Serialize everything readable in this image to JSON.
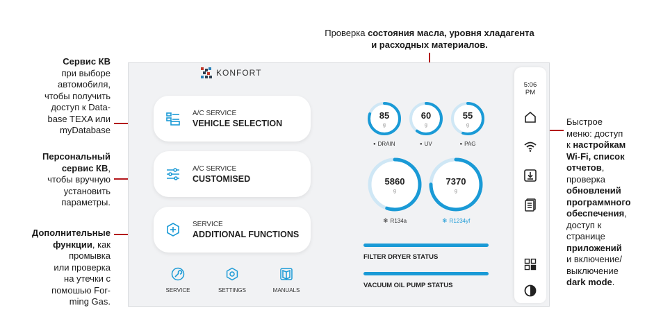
{
  "annotations": {
    "top_plain": "Проверка ",
    "top_bold_1": "состояния масла, уровня хладагента",
    "top_bold_2": "и расходных материалов.",
    "service_kv": {
      "title": "Сервис КВ",
      "lines": [
        "при выборе",
        "автомобиля,",
        "чтобы получить",
        "доступ к Data-",
        "base TEXA или",
        "myDatabase"
      ]
    },
    "personal": {
      "title_1": "Персональный",
      "title_2": "сервис КВ",
      "title_2_suffix": ",",
      "lines": [
        "чтобы вручную",
        "установить",
        "параметры."
      ]
    },
    "additional": {
      "title_1": "Дополнительные",
      "title_2": "функции",
      "title_2_suffix": ", как",
      "lines": [
        "промывка",
        "или проверка",
        "на утечки с",
        "помошью For-",
        "ming Gas."
      ]
    },
    "quick_menu": {
      "l1": "Быстрое",
      "l2": "меню: доступ",
      "l3_plain": "к ",
      "l3_bold": "настройкам",
      "l4_bold": "Wi-Fi, список",
      "l5_bold": "отчетов",
      "l5_plain": ",",
      "l6": "проверка",
      "l7_bold": "обновлений",
      "l8_bold": "программного",
      "l9_bold": "обеспечения",
      "l9_plain": ",",
      "l10": "доступ к",
      "l11": "странице",
      "l12_bold": "приложений",
      "l13": "и включение/",
      "l14": "выключение",
      "l15_bold": "dark mode",
      "l15_plain": "."
    }
  },
  "screen": {
    "logo_text": "KONFORT",
    "cards": [
      {
        "small": "A/C SERVICE",
        "big": "VEHICLE SELECTION",
        "icon": "vehicle-list-icon"
      },
      {
        "small": "A/C SERVICE",
        "big": "CUSTOMISED",
        "icon": "sliders-icon"
      },
      {
        "small": "SERVICE",
        "big": "ADDITIONAL FUNCTIONS",
        "icon": "plus-hexagon-icon"
      }
    ],
    "bottom_nav": [
      {
        "label": "SERVICE",
        "icon": "wrench-icon"
      },
      {
        "label": "SETTINGS",
        "icon": "gear-icon"
      },
      {
        "label": "MANUALS",
        "icon": "book-icon"
      }
    ],
    "small_gauges": [
      {
        "value": "85",
        "unit": "g",
        "label": "DRAIN",
        "fill": 0.8
      },
      {
        "value": "60",
        "unit": "g",
        "label": "UV",
        "fill": 0.6
      },
      {
        "value": "55",
        "unit": "g",
        "label": "PAG",
        "fill": 0.55
      }
    ],
    "large_gauges": [
      {
        "value": "5860",
        "unit": "g",
        "label": "R134a",
        "fill": 0.55
      },
      {
        "value": "7370",
        "unit": "g",
        "label": "R1234yf",
        "fill": 0.75
      }
    ],
    "status": [
      {
        "label": "FILTER DRYER STATUS",
        "level": 1.0
      },
      {
        "label": "VACUUM OIL PUMP STATUS",
        "level": 1.0
      }
    ],
    "clock": {
      "time": "5:06",
      "ampm": "PM"
    },
    "quick_icons": [
      "home-icon",
      "wifi-icon",
      "download-icon",
      "reports-icon",
      "apps-icon",
      "dark-mode-icon"
    ],
    "colors": {
      "accent": "#1a9ad6",
      "track": "#cfe7f5",
      "annotation_line": "#b3161b"
    }
  }
}
